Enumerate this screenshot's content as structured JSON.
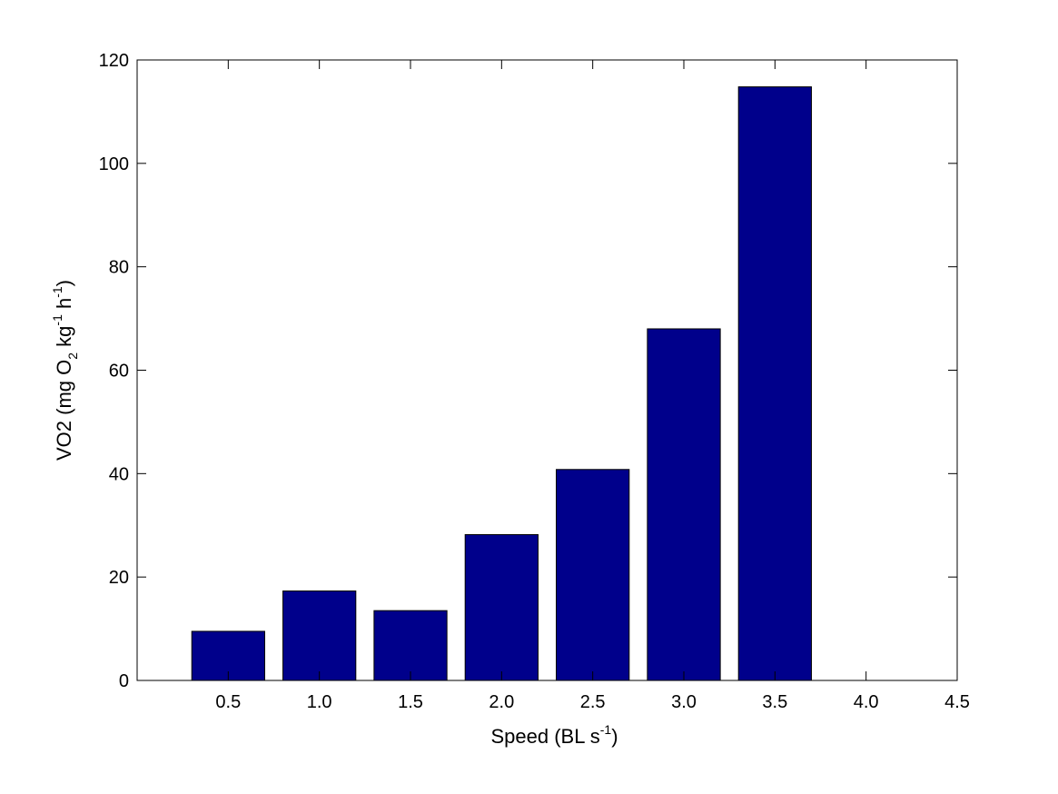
{
  "chart_data": {
    "type": "bar",
    "title": "",
    "xlabel": {
      "base": "Speed (BL s",
      "sup": "-1",
      "tail": ")"
    },
    "ylabel": {
      "parts": [
        {
          "text": "VO2 (mg O",
          "shift": "none"
        },
        {
          "text": "2",
          "shift": "sub"
        },
        {
          "text": " kg",
          "shift": "none"
        },
        {
          "text": "-1",
          "shift": "super"
        },
        {
          "text": " h",
          "shift": "none"
        },
        {
          "text": "-1",
          "shift": "super"
        },
        {
          "text": ")",
          "shift": "none"
        }
      ]
    },
    "x": [
      0.5,
      1.0,
      1.5,
      2.0,
      2.5,
      3.0,
      3.5
    ],
    "values": [
      9.5,
      17.3,
      13.5,
      28.2,
      40.8,
      68.0,
      114.8
    ],
    "xlim": [
      0,
      4.5
    ],
    "ylim": [
      0,
      120
    ],
    "xticks": [
      0.5,
      1.0,
      1.5,
      2.0,
      2.5,
      3.0,
      3.5,
      4.0,
      4.5
    ],
    "xtick_labels": [
      "0.5",
      "1.0",
      "1.5",
      "2.0",
      "2.5",
      "3.0",
      "3.5",
      "4.0",
      "4.5"
    ],
    "yticks": [
      0,
      20,
      40,
      60,
      80,
      100,
      120
    ],
    "ytick_labels": [
      "0",
      "20",
      "40",
      "60",
      "80",
      "100",
      "120"
    ],
    "bar_color": "#00008B",
    "grid": false,
    "legend": "none"
  }
}
